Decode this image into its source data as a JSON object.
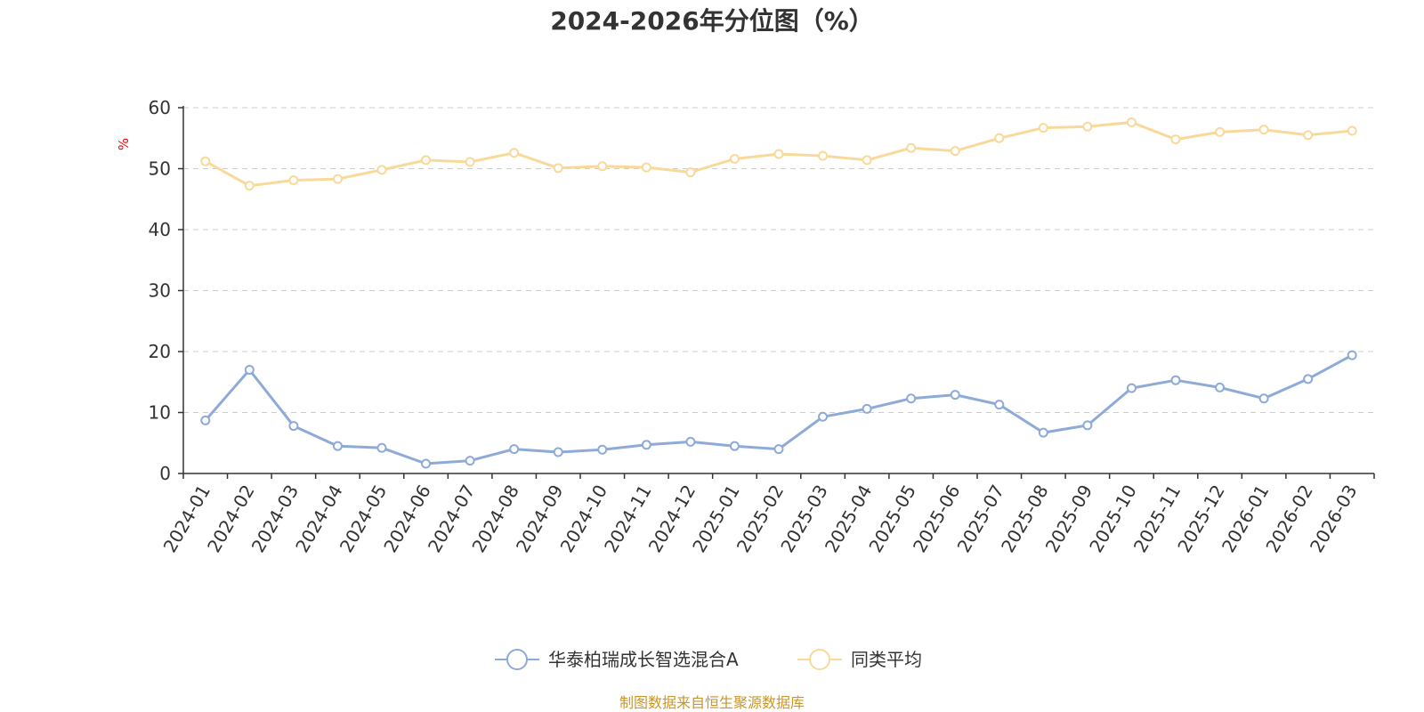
{
  "chart_data": {
    "type": "line",
    "title": "2024-2026年分位图（%）",
    "ylabel": "%",
    "xlabel": "",
    "ylim": [
      0,
      60
    ],
    "yticks": [
      0,
      10,
      20,
      30,
      40,
      50,
      60
    ],
    "grid": true,
    "legend_position": "bottom-center",
    "categories": [
      "2024-01",
      "2024-02",
      "2024-03",
      "2024-04",
      "2024-05",
      "2024-06",
      "2024-07",
      "2024-08",
      "2024-09",
      "2024-10",
      "2024-11",
      "2024-12",
      "2025-01",
      "2025-02",
      "2025-03",
      "2025-04",
      "2025-05",
      "2025-06",
      "2025-07",
      "2025-08",
      "2025-09",
      "2025-10",
      "2025-11",
      "2025-12",
      "2026-01",
      "2026-02",
      "2026-03"
    ],
    "series": [
      {
        "name": "华泰柏瑞成长智选混合A",
        "color": "#8eaad8",
        "values": [
          8.7,
          17.0,
          7.8,
          4.5,
          4.2,
          1.6,
          2.1,
          4.0,
          3.5,
          3.9,
          4.7,
          5.2,
          4.5,
          4.0,
          9.3,
          10.6,
          12.3,
          12.9,
          11.3,
          6.7,
          7.9,
          14.0,
          15.3,
          14.1,
          12.3,
          15.5,
          19.4
        ]
      },
      {
        "name": "同类平均",
        "color": "#f9d99a",
        "values": [
          51.2,
          47.2,
          48.1,
          48.3,
          49.8,
          51.4,
          51.1,
          52.6,
          50.1,
          50.4,
          50.2,
          49.4,
          51.6,
          52.4,
          52.1,
          51.4,
          53.4,
          52.9,
          55.0,
          56.7,
          56.9,
          57.6,
          54.8,
          56.0,
          56.4,
          55.5,
          56.2
        ]
      }
    ]
  },
  "source_text": "制图数据来自恒生聚源数据库"
}
